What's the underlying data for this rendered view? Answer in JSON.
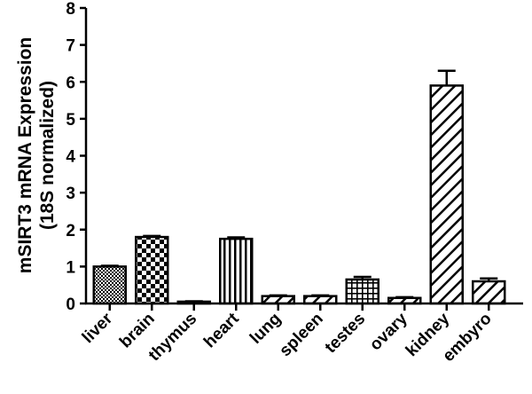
{
  "chart_data": {
    "type": "bar",
    "title": "",
    "ylabel_lines": [
      "mSIRT3 mRNA Expression",
      "(18S normalized)"
    ],
    "xlabel": "",
    "ylim": [
      0,
      8
    ],
    "yticks": [
      0,
      1,
      2,
      3,
      4,
      5,
      6,
      7,
      8
    ],
    "categories": [
      "liver",
      "brain",
      "thymus",
      "heart",
      "lung",
      "spleen",
      "testes",
      "ovary",
      "kidney",
      "embyro"
    ],
    "values": [
      1.0,
      1.8,
      0.05,
      1.75,
      0.2,
      0.2,
      0.65,
      0.15,
      5.9,
      0.6
    ],
    "errors": [
      0.02,
      0.03,
      0.01,
      0.04,
      0.02,
      0.02,
      0.07,
      0.02,
      0.4,
      0.08
    ],
    "patterns": [
      "dots",
      "checker",
      "vertical",
      "vertical",
      "diagonal",
      "diagonal",
      "grid",
      "diagonal",
      "diagonal",
      "diagonal"
    ]
  }
}
